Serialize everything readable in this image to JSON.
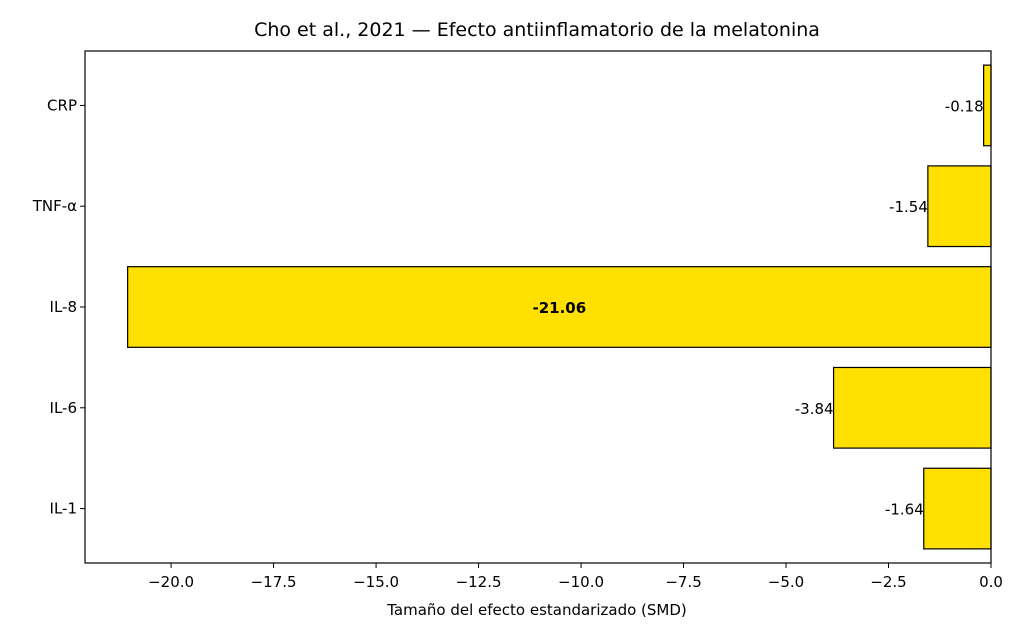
{
  "chart_data": {
    "type": "bar",
    "orientation": "horizontal",
    "title": "Cho et al., 2021 — Efecto antiinflamatorio de la melatonina",
    "xlabel": "Tamaño del efecto estandarizado (SMD)",
    "ylabel": "",
    "categories": [
      "IL-1",
      "IL-6",
      "IL-8",
      "TNF-α",
      "CRP"
    ],
    "values": [
      -1.64,
      -3.84,
      -21.06,
      -1.54,
      -0.18
    ],
    "value_labels": [
      "-1.64",
      "-3.84",
      "-21.06",
      "-1.54",
      "-0.18"
    ],
    "xlim": [
      -22.1,
      0
    ],
    "xticks": [
      -20.0,
      -17.5,
      -15.0,
      -12.5,
      -10.0,
      -7.5,
      -5.0,
      -2.5,
      0.0
    ],
    "xtick_labels": [
      "−20.0",
      "−17.5",
      "−15.0",
      "−12.5",
      "−10.0",
      "−7.5",
      "−5.0",
      "−2.5",
      "0.0"
    ],
    "bar_color": "#FFE000",
    "edge_color": "#000000",
    "grid": false,
    "legend": "none",
    "highlight_label_index": 2
  }
}
